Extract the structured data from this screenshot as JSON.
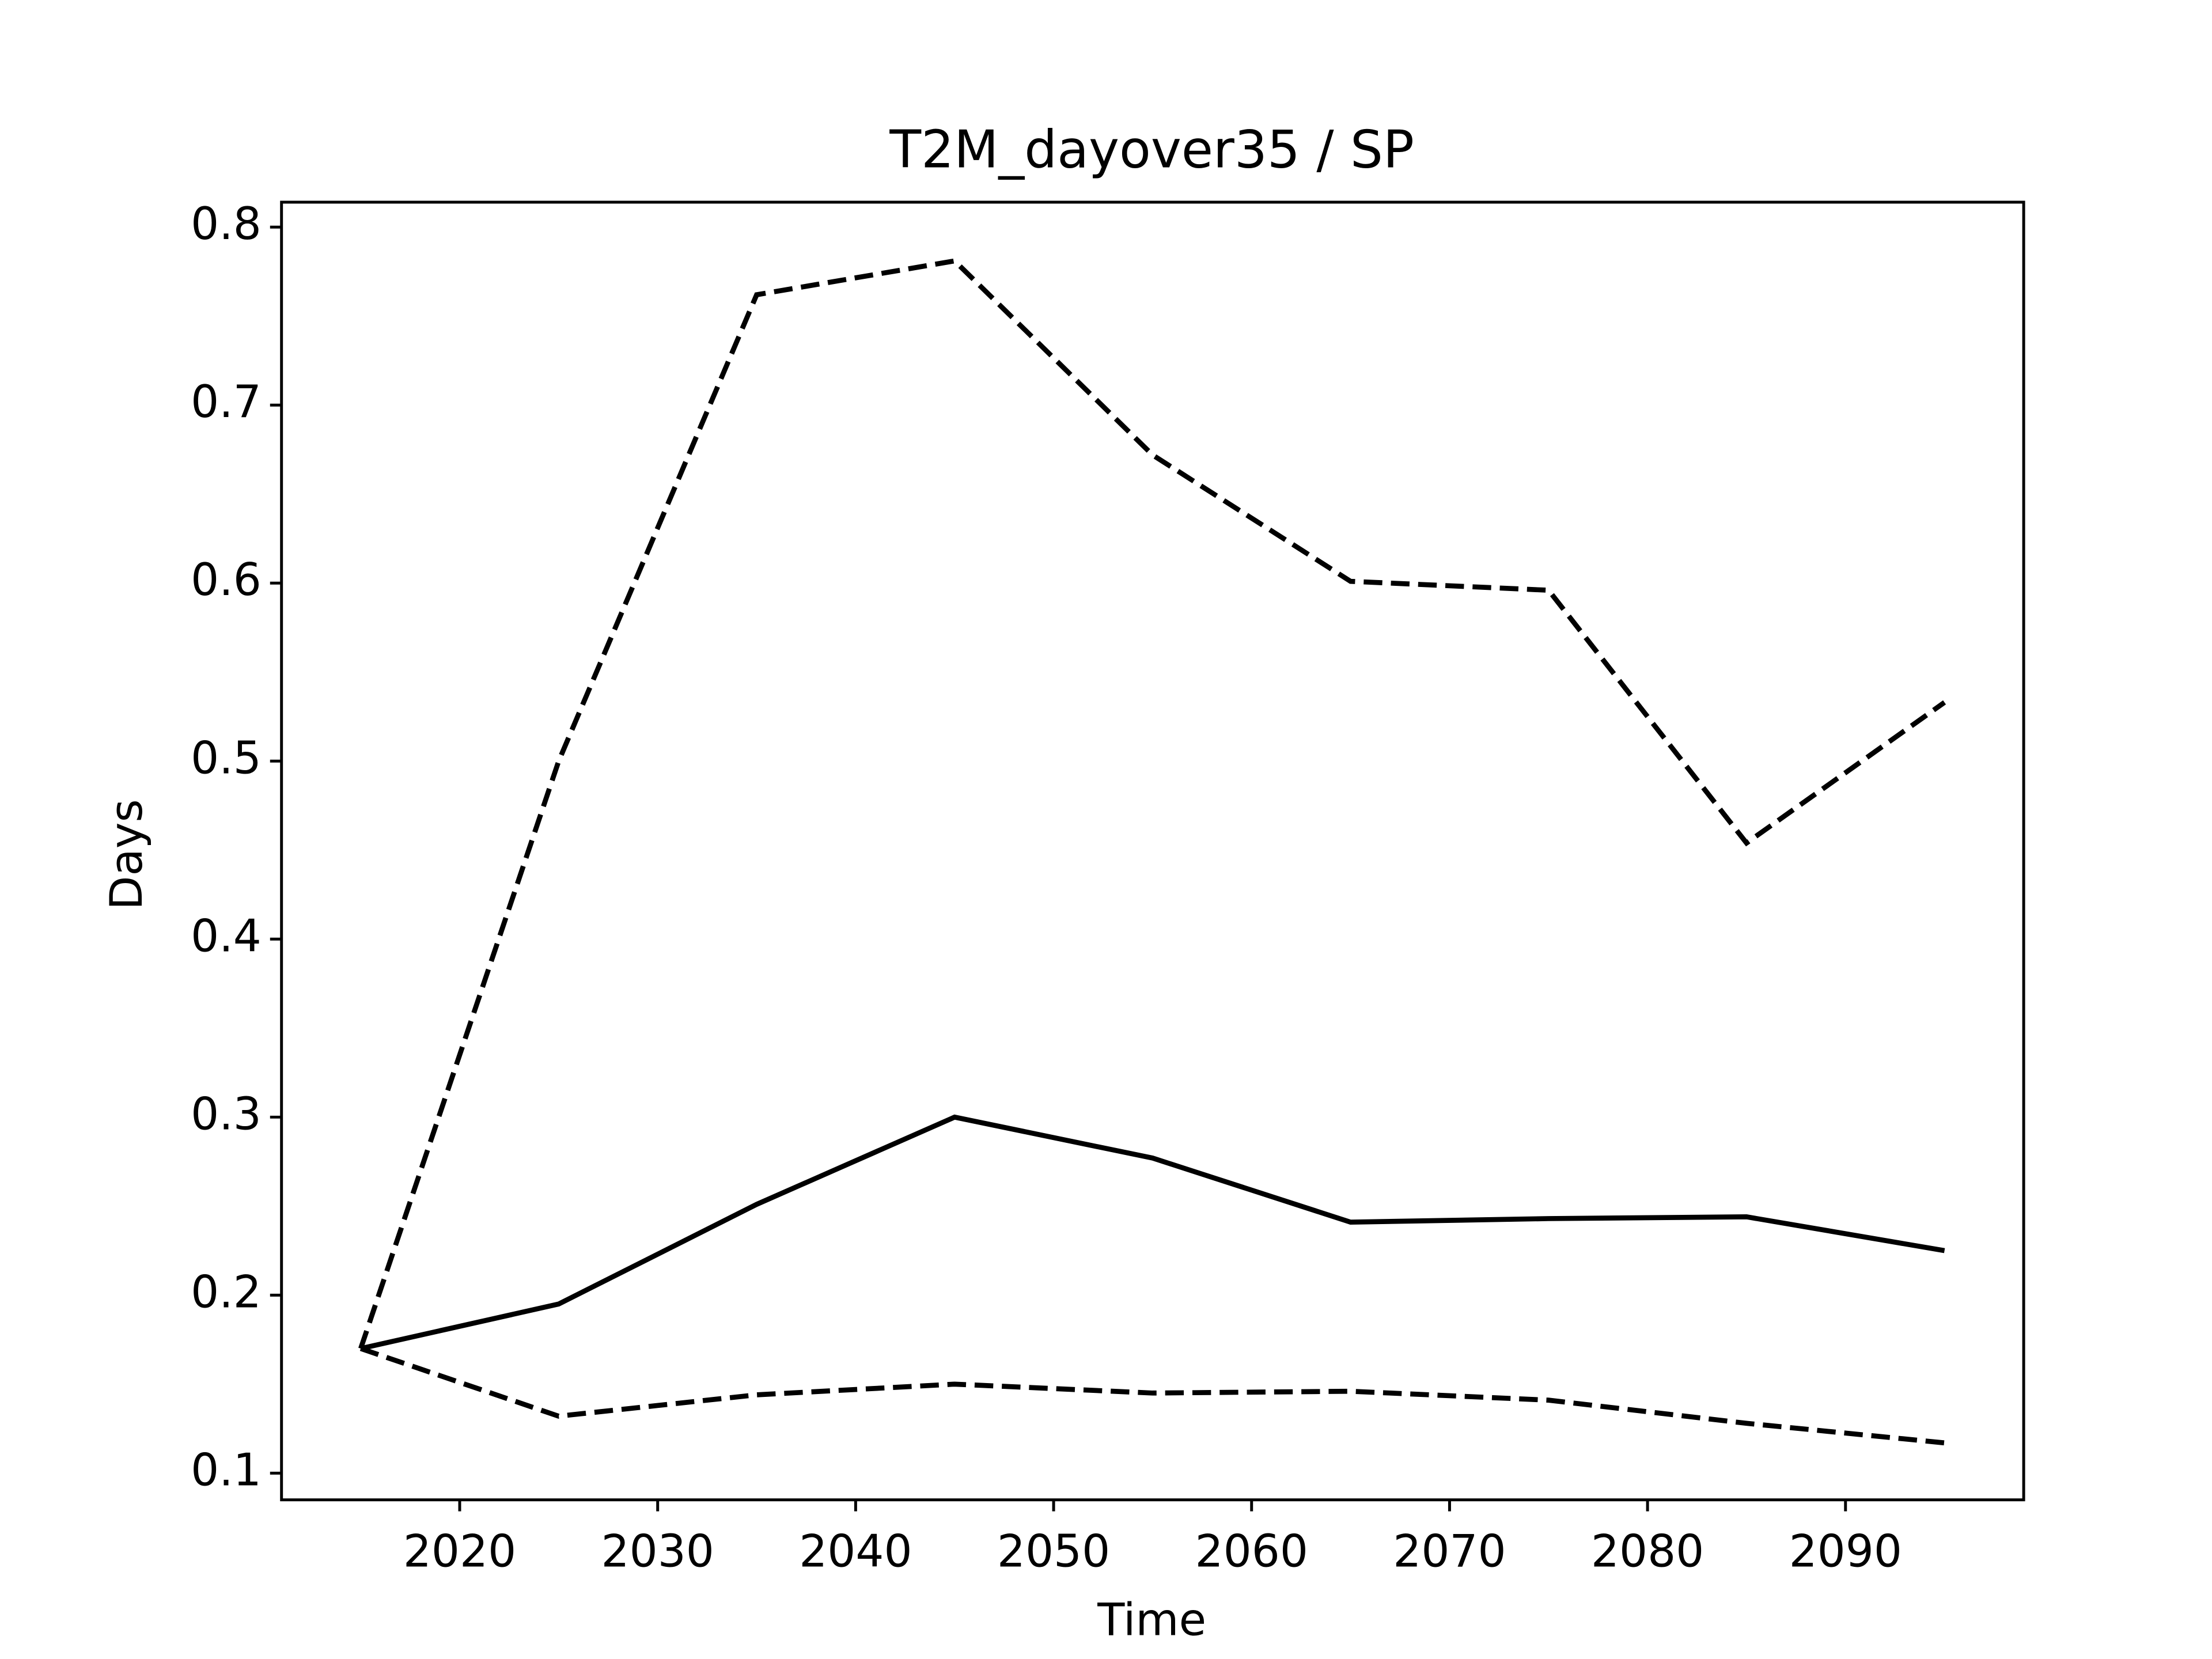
{
  "chart_data": {
    "type": "line",
    "title": "T2M_dayover35 / SP",
    "xlabel": "Time",
    "ylabel": "Days",
    "x": [
      2015,
      2025,
      2035,
      2045,
      2055,
      2065,
      2075,
      2085,
      2095
    ],
    "series": [
      {
        "color": "#000000",
        "linestyle": "solid",
        "values": [
          0.17,
          0.195,
          0.251,
          0.3,
          0.277,
          0.241,
          0.243,
          0.244,
          0.225
        ]
      },
      {
        "color": "#000000",
        "linestyle": "dashed",
        "values": [
          0.17,
          0.5,
          0.762,
          0.781,
          0.672,
          0.601,
          0.596,
          0.454,
          0.533
        ]
      },
      {
        "color": "#000000",
        "linestyle": "dashed",
        "values": [
          0.17,
          0.132,
          0.144,
          0.15,
          0.145,
          0.146,
          0.141,
          0.128,
          0.117
        ]
      }
    ],
    "xlim": [
      2011,
      2099
    ],
    "xticks": [
      2020,
      2030,
      2040,
      2050,
      2060,
      2070,
      2080,
      2090
    ],
    "ylim": [
      0.085,
      0.814
    ],
    "yticks": [
      0.1,
      0.2,
      0.3,
      0.4,
      0.5,
      0.6,
      0.7,
      0.8
    ],
    "grid": false
  }
}
